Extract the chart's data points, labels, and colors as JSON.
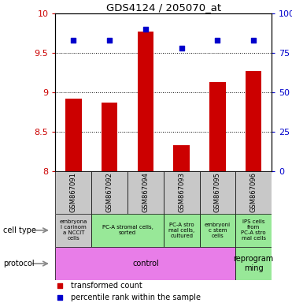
{
  "title": "GDS4124 / 205070_at",
  "samples": [
    "GSM867091",
    "GSM867092",
    "GSM867094",
    "GSM867093",
    "GSM867095",
    "GSM867096"
  ],
  "bar_values": [
    8.92,
    8.87,
    9.77,
    8.33,
    9.13,
    9.27
  ],
  "scatter_values": [
    83,
    83,
    90,
    78,
    83,
    83
  ],
  "ylim_left": [
    8.0,
    10.0
  ],
  "ylim_right": [
    0,
    100
  ],
  "yticks_left": [
    8.0,
    8.5,
    9.0,
    9.5,
    10.0
  ],
  "yticks_right": [
    0,
    25,
    50,
    75,
    100
  ],
  "ytick_labels_left": [
    "8",
    "8.5",
    "9",
    "9.5",
    "10"
  ],
  "ytick_labels_right": [
    "0",
    "25",
    "50",
    "75",
    "100%"
  ],
  "bar_color": "#cc0000",
  "scatter_color": "#0000cc",
  "cell_type_data": [
    [
      0,
      1,
      "#c8c8c8",
      "embryona\nl carinom\na NCCIT\ncells"
    ],
    [
      1,
      3,
      "#98e898",
      "PC-A stromal cells,\nsorted"
    ],
    [
      3,
      4,
      "#98e898",
      "PC-A stro\nmal cells,\ncultured"
    ],
    [
      4,
      5,
      "#98e898",
      "embryoni\nc stem\ncells"
    ],
    [
      5,
      6,
      "#98e898",
      "IPS cells\nfrom\nPC-A stro\nmal cells"
    ]
  ],
  "proto_data": [
    [
      0,
      5,
      "#e87de8",
      "control"
    ],
    [
      5,
      6,
      "#98e898",
      "reprogram\nming"
    ]
  ],
  "legend_items": [
    {
      "color": "#cc0000",
      "label": "transformed count"
    },
    {
      "color": "#0000cc",
      "label": "percentile rank within the sample"
    }
  ]
}
